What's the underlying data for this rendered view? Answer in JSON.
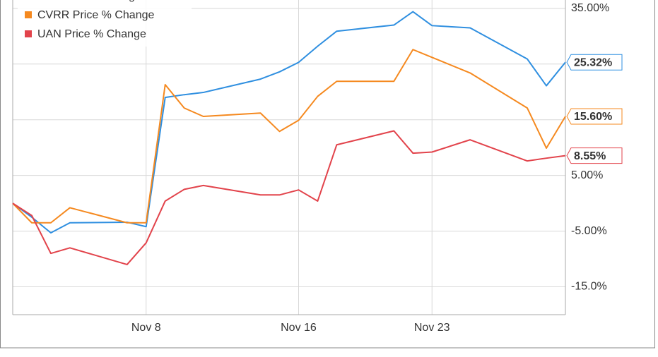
{
  "chart_data": {
    "type": "line",
    "x": [
      1,
      2,
      3,
      4,
      7,
      8,
      9,
      10,
      11,
      14,
      15,
      16,
      17,
      18,
      21,
      22,
      23,
      25,
      28,
      29,
      30
    ],
    "xlim": [
      1,
      30
    ],
    "xticks": [
      {
        "value": 8,
        "label": "Nov 8"
      },
      {
        "value": 16,
        "label": "Nov 16"
      },
      {
        "value": 23,
        "label": "Nov 23"
      }
    ],
    "ylim": [
      -20,
      36.5
    ],
    "yticks": [
      {
        "value": -15,
        "label": "-15.0%"
      },
      {
        "value": -5,
        "label": "-5.00%"
      },
      {
        "value": 5,
        "label": "5.00%"
      },
      {
        "value": 15,
        "label": "15.00%"
      },
      {
        "value": 25,
        "label": "25.00%"
      },
      {
        "value": 35,
        "label": "35.00%"
      }
    ],
    "grid": true,
    "legend": "top-left",
    "series": [
      {
        "name": "CVI Price % Change",
        "color": "#2f8fe0",
        "values": [
          0,
          -2.5,
          -5.3,
          -3.5,
          -3.4,
          -4.2,
          19,
          19.5,
          19.9,
          22.3,
          23.6,
          25.3,
          28.2,
          30.9,
          32,
          34.4,
          31.9,
          31.5,
          25.9,
          21.1,
          25.32
        ],
        "value_labels": [
          null,
          null,
          null,
          null,
          null,
          null,
          null,
          null,
          null,
          null,
          null,
          null,
          null,
          null,
          null,
          null,
          null,
          null,
          null,
          null,
          "25.32%"
        ]
      },
      {
        "name": "CVRR Price % Change",
        "color": "#f5891f",
        "values": [
          0,
          -3.5,
          -3.5,
          -0.8,
          -3.5,
          -3.5,
          21.3,
          17.1,
          15.6,
          16.2,
          12.9,
          14.9,
          19.2,
          21.9,
          21.9,
          27.6,
          26.2,
          23.4,
          17.1,
          9.9,
          15.6
        ],
        "value_labels": [
          null,
          null,
          null,
          null,
          null,
          null,
          null,
          null,
          null,
          null,
          null,
          null,
          null,
          null,
          null,
          null,
          null,
          null,
          null,
          null,
          "15.60%"
        ]
      },
      {
        "name": "UAN Price % Change",
        "color": "#e2434b",
        "values": [
          0,
          -2.2,
          -9,
          -8,
          -11,
          -7.1,
          0.4,
          2.5,
          3.2,
          1.5,
          1.5,
          2.4,
          0.4,
          10.5,
          13,
          9,
          9.2,
          11.4,
          7.6,
          8.1,
          8.55
        ],
        "value_labels": [
          null,
          null,
          null,
          null,
          null,
          null,
          null,
          null,
          null,
          null,
          null,
          null,
          null,
          null,
          null,
          null,
          null,
          null,
          null,
          null,
          "8.55%"
        ]
      }
    ]
  }
}
